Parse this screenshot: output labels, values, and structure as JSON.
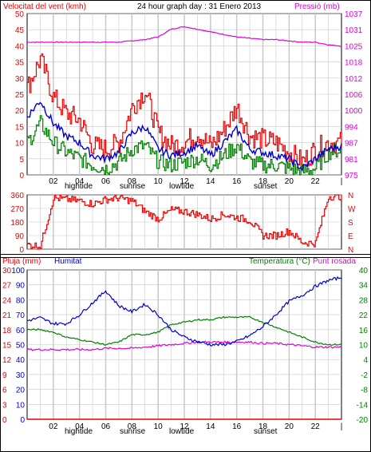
{
  "title": "24 hour graph day : 31 Enero 2013",
  "colors": {
    "wind_avg": "#0000cc",
    "wind_gust": "#ee0000",
    "wind_min": "#008000",
    "pressure": "#dd00dd",
    "direction": "#ee0000",
    "humidity": "#0000cc",
    "temperature": "#008000",
    "dewpoint": "#dd00dd",
    "rain": "#ee0000",
    "grid": "#c8c8c8",
    "frame": "#000000"
  },
  "time_axis": {
    "ticks": [
      "02",
      "04",
      "06",
      "08",
      "10",
      "12",
      "14",
      "16",
      "18",
      "20",
      "22",
      "|"
    ],
    "events": [
      {
        "label": "hightide",
        "near": "04"
      },
      {
        "label": "sunrise",
        "near": "08"
      },
      {
        "label": "lowtide",
        "near": "12"
      },
      {
        "label": "sunset",
        "near": "18"
      }
    ]
  },
  "chart_data": [
    {
      "type": "line",
      "panel": "wind",
      "left_axis_label": "Velocitat del vent (kmh)",
      "right_axis_label": "Pressió (mb)",
      "left_ticks": [
        50,
        45,
        40,
        35,
        30,
        25,
        20,
        15,
        10,
        5,
        0
      ],
      "right_ticks": [
        1037,
        1031,
        1025,
        1018,
        1012,
        1006,
        1000,
        994,
        987,
        981,
        975
      ],
      "ylim_left": [
        0,
        50
      ],
      "ylim_right": [
        975,
        1037
      ],
      "x": [
        0,
        1,
        2,
        3,
        4,
        5,
        6,
        7,
        8,
        9,
        10,
        11,
        12,
        13,
        14,
        15,
        16,
        17,
        18,
        19,
        20,
        21,
        22,
        23,
        24
      ],
      "series": [
        {
          "key": "gust",
          "values": [
            27,
            36,
            24,
            19,
            17,
            9,
            8,
            10,
            21,
            26,
            13,
            9,
            10,
            13,
            9,
            14,
            21,
            12,
            11,
            10,
            7,
            4,
            8,
            10,
            10
          ]
        },
        {
          "key": "avg",
          "values": [
            18,
            23,
            16,
            12,
            10,
            6,
            5,
            7,
            13,
            15,
            8,
            6,
            7,
            9,
            6,
            10,
            14,
            8,
            7,
            6,
            5,
            2,
            5,
            8,
            9
          ]
        },
        {
          "key": "min",
          "values": [
            10,
            16,
            10,
            7,
            5,
            3,
            2,
            4,
            8,
            9,
            4,
            3,
            4,
            5,
            3,
            6,
            9,
            4,
            3,
            3,
            2,
            1,
            2,
            7,
            8
          ]
        },
        {
          "key": "pressure",
          "values": [
            1026,
            1026,
            1026,
            1026,
            1026,
            1026,
            1026,
            1026,
            1026.5,
            1027,
            1028,
            1031,
            1032,
            1031,
            1030,
            1029,
            1028,
            1027.5,
            1027,
            1027,
            1026.5,
            1026,
            1026,
            1025,
            1024.5
          ]
        }
      ]
    },
    {
      "type": "line",
      "panel": "direction",
      "left_ticks": [
        360,
        270,
        180,
        90,
        0
      ],
      "right_ticks": [
        "N",
        "W",
        "S",
        "E",
        "N"
      ],
      "ylim": [
        0,
        360
      ],
      "x": [
        0,
        1,
        2,
        3,
        4,
        5,
        6,
        7,
        8,
        9,
        10,
        11,
        12,
        13,
        14,
        15,
        16,
        17,
        18,
        19,
        20,
        21,
        22,
        23,
        24
      ],
      "series": [
        {
          "key": "direction",
          "values": [
            30,
            20,
            340,
            330,
            320,
            300,
            330,
            340,
            320,
            250,
            200,
            260,
            250,
            230,
            200,
            230,
            210,
            190,
            90,
            90,
            120,
            45,
            40,
            350,
            350
          ]
        }
      ]
    },
    {
      "type": "line",
      "panel": "temperature",
      "left_outer_label": "Pluja (mm)",
      "left_inner_label": "Humitat",
      "right_label_a": "Temperatura (°C)",
      "right_label_b": "Punt rosada",
      "rain_ticks": [
        30,
        27,
        24,
        21,
        18,
        15,
        12,
        9,
        6,
        3,
        0
      ],
      "humidity_ticks": [
        100,
        90,
        80,
        70,
        60,
        50,
        40,
        30,
        20,
        10,
        0
      ],
      "temp_ticks": [
        40,
        34,
        28,
        22,
        16,
        10,
        4,
        -2,
        -8,
        -14,
        -20
      ],
      "ylim_rain": [
        0,
        30
      ],
      "ylim_humidity": [
        0,
        100
      ],
      "ylim_temp": [
        -20,
        40
      ],
      "x": [
        0,
        1,
        2,
        3,
        4,
        5,
        6,
        7,
        8,
        9,
        10,
        11,
        12,
        13,
        14,
        15,
        16,
        17,
        18,
        19,
        20,
        21,
        22,
        23,
        24
      ],
      "series": [
        {
          "key": "humidity",
          "values": [
            66,
            68,
            64,
            64,
            70,
            78,
            86,
            76,
            72,
            77,
            70,
            60,
            55,
            52,
            50,
            50,
            52,
            56,
            62,
            70,
            79,
            83,
            89,
            93,
            95
          ]
        },
        {
          "key": "temperature",
          "values": [
            16,
            16,
            15,
            13,
            12,
            11,
            10,
            11,
            14,
            14,
            15,
            18,
            19,
            20,
            20,
            21,
            21,
            21,
            19,
            17,
            15,
            13,
            11,
            10,
            10
          ]
        },
        {
          "key": "dewpoint",
          "values": [
            8,
            8,
            8,
            8,
            8,
            8,
            8.5,
            8.5,
            8.5,
            9,
            9.5,
            10,
            10.5,
            11,
            11,
            11,
            11,
            11,
            10.5,
            10.5,
            10,
            9.5,
            9,
            9,
            9
          ]
        },
        {
          "key": "rain",
          "values": [
            0,
            0,
            0,
            0,
            0,
            0,
            0,
            0,
            0,
            0,
            0,
            0,
            0,
            0,
            0,
            0,
            0,
            0,
            0,
            0,
            0,
            0,
            0,
            0,
            0
          ]
        }
      ]
    }
  ]
}
